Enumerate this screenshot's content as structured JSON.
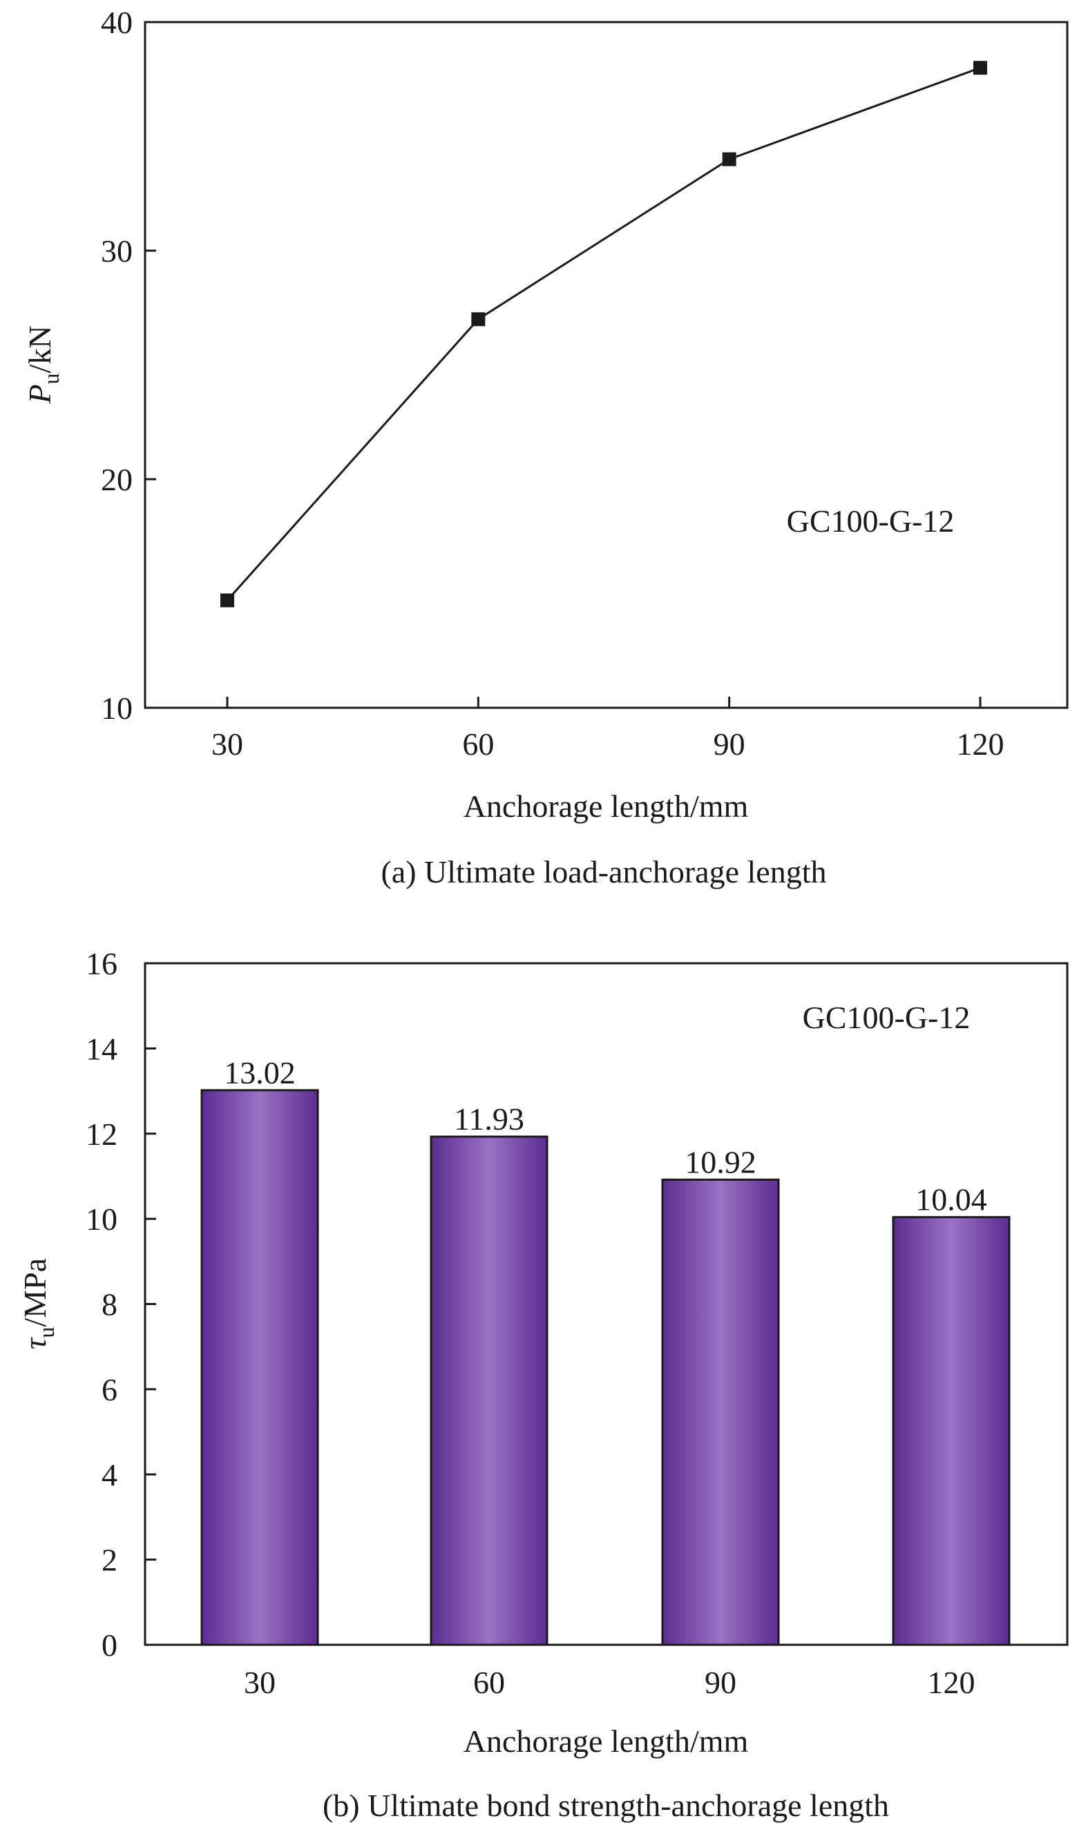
{
  "chart_data": [
    {
      "type": "line",
      "x": [
        30,
        60,
        90,
        120
      ],
      "y": [
        14.7,
        27.0,
        34.0,
        38.0
      ],
      "xlabel": "Anchorage length/mm",
      "ylabel_main": "P",
      "ylabel_sub": "u",
      "ylabel_rest": "/kN",
      "ylim": [
        10,
        40
      ],
      "yticks": [
        "10",
        "20",
        "30",
        "40"
      ],
      "xticks": [
        "30",
        "60",
        "90",
        "120"
      ],
      "annotation": "GC100-G-12",
      "caption": "(a) Ultimate load-anchorage length",
      "marker": "square",
      "color": "#1a1a1a"
    },
    {
      "type": "bar",
      "categories": [
        "30",
        "60",
        "90",
        "120"
      ],
      "values": [
        13.02,
        11.93,
        10.92,
        10.04
      ],
      "data_labels": [
        "13.02",
        "11.93",
        "10.92",
        "10.04"
      ],
      "xlabel": "Anchorage length/mm",
      "ylabel_main": "τ",
      "ylabel_sub": "u",
      "ylabel_rest": "/MPa",
      "ylim": [
        0,
        16
      ],
      "yticks": [
        "0",
        "2",
        "4",
        "6",
        "8",
        "10",
        "12",
        "14",
        "16"
      ],
      "annotation": "GC100-G-12",
      "caption": "(b) Ultimate bond strength-anchorage length",
      "bar_colors": {
        "edge": "#5b2d91",
        "center": "#9b72c4"
      }
    }
  ]
}
